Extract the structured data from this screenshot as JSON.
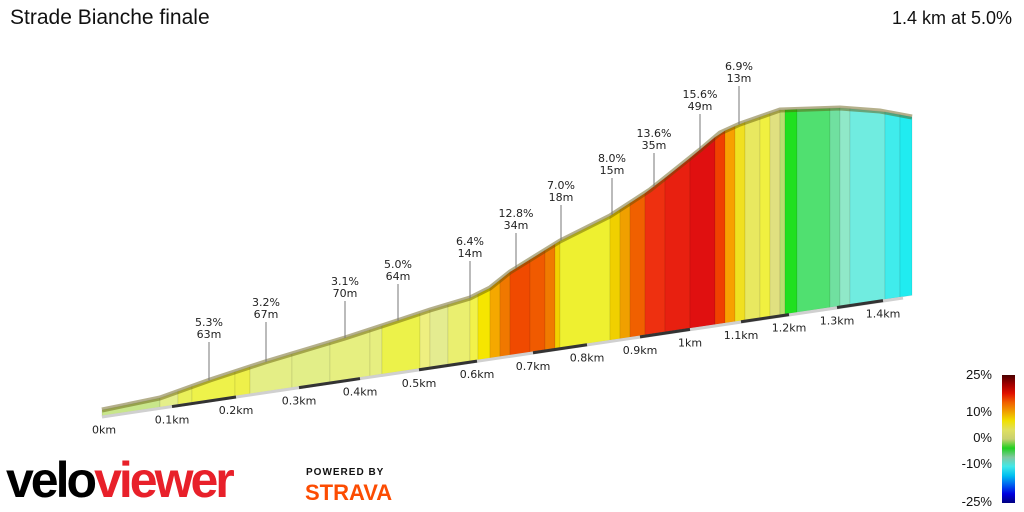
{
  "title": "Strade Bianche finale",
  "summary": "1.4 km at 5.0%",
  "chart_data": {
    "type": "area",
    "distance_ticks": [
      "0km",
      "0.1km",
      "0.2km",
      "0.3km",
      "0.4km",
      "0.5km",
      "0.6km",
      "0.7km",
      "0.8km",
      "0.9km",
      "1km",
      "1.1km",
      "1.2km",
      "1.3km",
      "1.4km"
    ],
    "annotations": [
      {
        "gradient": "5.3%",
        "length": "63m"
      },
      {
        "gradient": "3.2%",
        "length": "67m"
      },
      {
        "gradient": "3.1%",
        "length": "70m"
      },
      {
        "gradient": "5.0%",
        "length": "64m"
      },
      {
        "gradient": "6.4%",
        "length": "14m"
      },
      {
        "gradient": "12.8%",
        "length": "34m"
      },
      {
        "gradient": "7.0%",
        "length": "18m"
      },
      {
        "gradient": "8.0%",
        "length": "15m"
      },
      {
        "gradient": "13.6%",
        "length": "35m"
      },
      {
        "gradient": "15.6%",
        "length": "49m"
      },
      {
        "gradient": "6.9%",
        "length": "13m"
      }
    ],
    "segment_colors": [
      "#c8e68a",
      "#e5ef8a",
      "#e9f05a",
      "#eef24a",
      "#eef04a",
      "#e4ee86",
      "#e2ee88",
      "#e6ef80",
      "#e6ee80",
      "#ecf24a",
      "#eeef80",
      "#e4ec90",
      "#eaef70",
      "#f2f24a",
      "#f6e600",
      "#f5a800",
      "#f07800",
      "#f04a00",
      "#f05a00",
      "#f07a00",
      "#f2d000",
      "#eef030",
      "#f0d000",
      "#f0a000",
      "#f06000",
      "#ee3010",
      "#e82010",
      "#e01010",
      "#f04000",
      "#f8a000",
      "#f0e020",
      "#e8e860",
      "#f0f040",
      "#e0e080",
      "#b8e070",
      "#20e020",
      "#50e070",
      "#70e0a0",
      "#90e8c8",
      "#70ece0",
      "#40ecec",
      "#20ecf0"
    ],
    "legend": {
      "labels": [
        "25%",
        "10%",
        "0%",
        "-10%",
        "-25%"
      ]
    }
  },
  "logo": {
    "velo": "velo",
    "viewer": "viewer",
    "powered": "POWERED BY",
    "strava": "STRAVA"
  }
}
